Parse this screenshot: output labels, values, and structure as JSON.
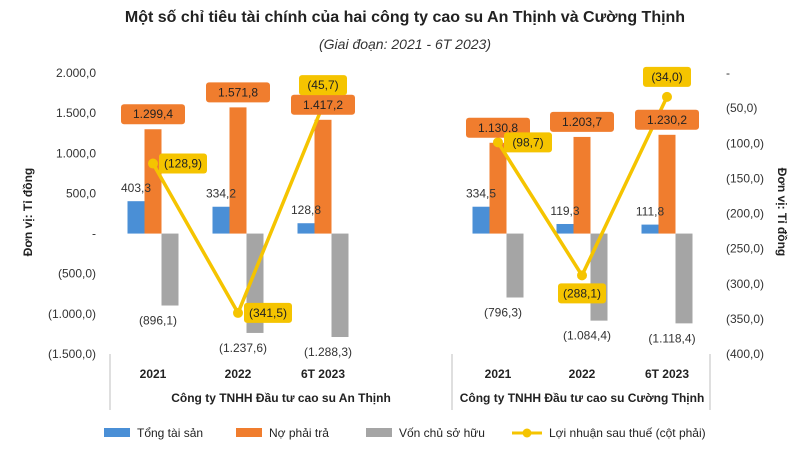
{
  "chart_data": {
    "type": "bar",
    "title": "Một số chỉ tiêu tài chính của hai công ty cao su An Thịnh và Cường Thịnh",
    "subtitle": "(Giai đoạn: 2021 - 6T 2023)",
    "ylabel_left": "Đơn vị: Tỉ đồng",
    "ylabel_right": "Đơn vị: Tỉ đồng",
    "ylim_left": [
      -1500,
      2000
    ],
    "yticks_left": [
      "2.000,0",
      "1.500,0",
      "1.000,0",
      "500,0",
      "-",
      "(500,0)",
      "(1.000,0)",
      "(1.500,0)"
    ],
    "ylim_right": [
      -400,
      0
    ],
    "yticks_right": [
      "-",
      "(50,0)",
      "(100,0)",
      "(150,0)",
      "(200,0)",
      "(250,0)",
      "(300,0)",
      "(350,0)",
      "(400,0)"
    ],
    "groups": [
      {
        "name": "Công ty TNHH Đầu tư cao su An Thịnh",
        "categories": [
          "2021",
          "2022",
          "6T 2023"
        ]
      },
      {
        "name": "Công ty TNHH Đầu tư cao su Cường Thịnh",
        "categories": [
          "2021",
          "2022",
          "6T 2023"
        ]
      }
    ],
    "series": [
      {
        "name": "Tổng tài sản",
        "type": "bar",
        "axis": "left",
        "color": "#4a8fd6",
        "values": [
          [
            403.3,
            334.2,
            128.8
          ],
          [
            334.5,
            119.3,
            111.8
          ]
        ],
        "labels": [
          [
            "403,3",
            "334,2",
            "128,8"
          ],
          [
            "334,5",
            "119,3",
            "111,8"
          ]
        ]
      },
      {
        "name": "Nợ phải trả",
        "type": "bar",
        "axis": "left",
        "color": "#f07d2e",
        "values": [
          [
            1299.4,
            1571.8,
            1417.2
          ],
          [
            1130.8,
            1203.7,
            1230.2
          ]
        ],
        "labels": [
          [
            "1.299,4",
            "1.571,8",
            "1.417,2"
          ],
          [
            "1.130,8",
            "1.203,7",
            "1.230,2"
          ]
        ]
      },
      {
        "name": "Vốn chủ sở hữu",
        "type": "bar",
        "axis": "left",
        "color": "#a5a5a5",
        "values": [
          [
            -896.1,
            -1237.6,
            -1288.3
          ],
          [
            -796.3,
            -1084.4,
            -1118.4
          ]
        ],
        "labels": [
          [
            "(896,1)",
            "(1.237,6)",
            "(1.288,3)"
          ],
          [
            "(796,3)",
            "(1.084,4)",
            "(1.118,4)"
          ]
        ]
      },
      {
        "name": "Lợi nhuận sau thuế (cột phải)",
        "type": "line",
        "axis": "right",
        "color": "#f5c400",
        "values": [
          [
            -128.9,
            -341.5,
            -45.7
          ],
          [
            -98.7,
            -288.1,
            -34.0
          ]
        ],
        "labels": [
          [
            "(128,9)",
            "(341,5)",
            "(45,7)"
          ],
          [
            "(98,7)",
            "(288,1)",
            "(34,0)"
          ]
        ]
      }
    ],
    "legend": "bottom",
    "grid": false
  }
}
